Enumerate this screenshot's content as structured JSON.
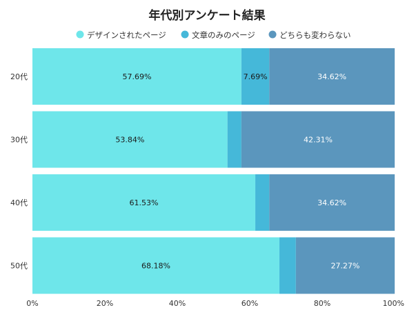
{
  "chart_data": {
    "type": "bar",
    "orientation": "horizontal",
    "stacked": true,
    "normalized": true,
    "title": "年代別アンケート結果",
    "categories": [
      "20代",
      "30代",
      "40代",
      "50代"
    ],
    "series": [
      {
        "name": "デザインされたページ",
        "color": "#6ee6ea",
        "values": [
          57.69,
          53.84,
          61.53,
          68.18
        ],
        "labels": [
          "57.69%",
          "53.84%",
          "61.53%",
          "68.18%"
        ]
      },
      {
        "name": "文章のみのページ",
        "color": "#45b8d9",
        "values": [
          7.69,
          3.85,
          3.85,
          4.55
        ],
        "labels": [
          "7.69%",
          "",
          "",
          ""
        ]
      },
      {
        "name": "どちらも変わらない",
        "color": "#5b96bd",
        "values": [
          34.62,
          42.31,
          34.62,
          27.27
        ],
        "labels": [
          "34.62%",
          "42.31%",
          "34.62%",
          "27.27%"
        ]
      }
    ],
    "xlim": [
      0,
      100
    ],
    "x_ticks": [
      "0%",
      "20%",
      "40%",
      "60%",
      "80%",
      "100%"
    ],
    "legend_position": "top",
    "grid": false
  }
}
